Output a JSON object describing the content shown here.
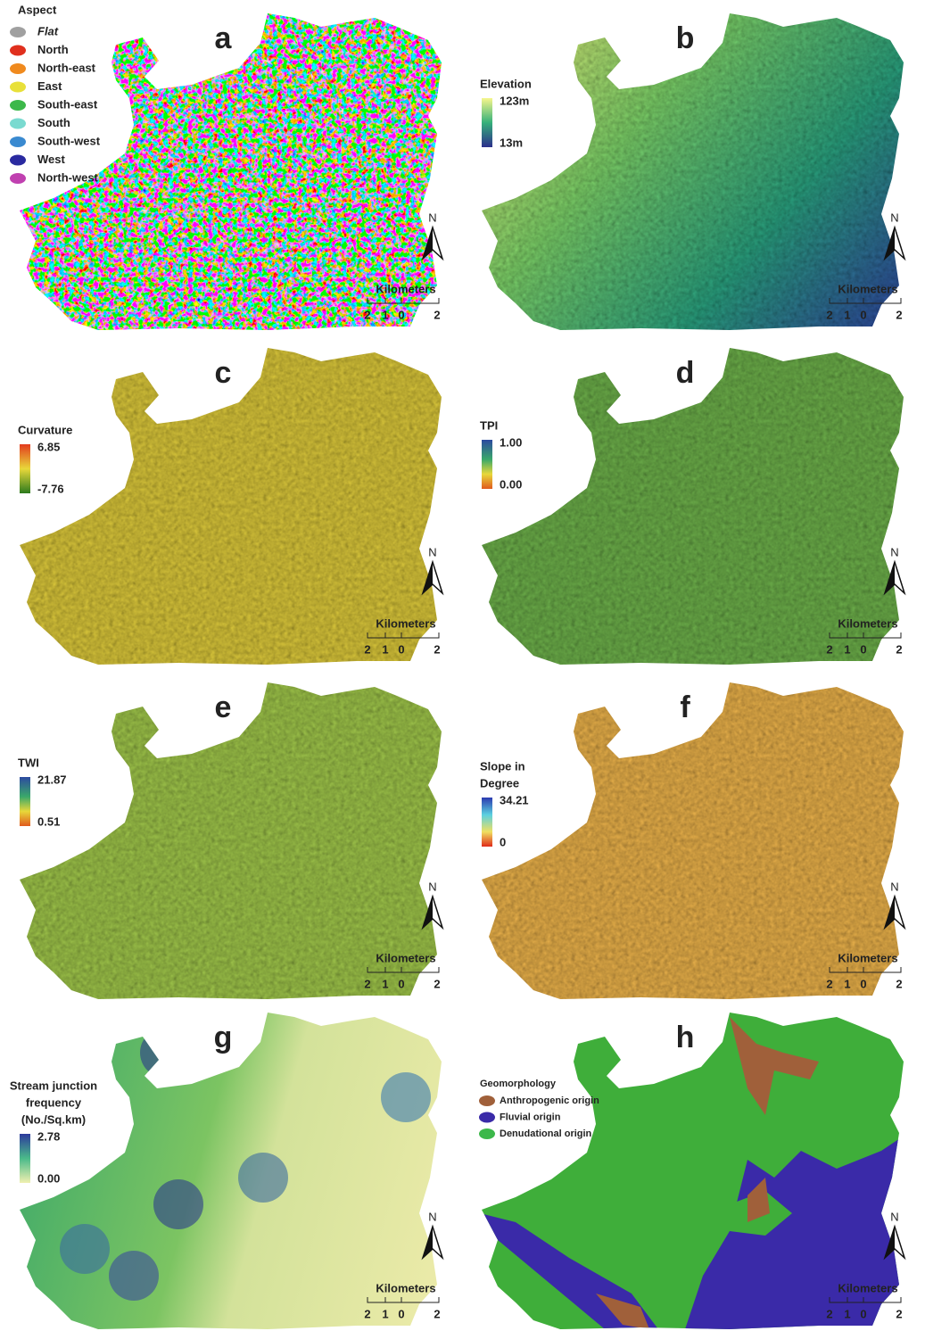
{
  "panels": [
    {
      "label": "a",
      "legend_title": [
        "Aspect"
      ],
      "legend_items": [
        "Flat",
        "North",
        "North-east",
        "East",
        "South-east",
        "South",
        "South-west",
        "West",
        "North-west"
      ]
    },
    {
      "label": "b",
      "legend_title": [
        "Elevation"
      ],
      "legend_max": "123m",
      "legend_min": "13m"
    },
    {
      "label": "c",
      "legend_title": [
        "Curvature"
      ],
      "legend_max": "6.85",
      "legend_min": "-7.76"
    },
    {
      "label": "d",
      "legend_title": [
        "TPI"
      ],
      "legend_max": "1.00",
      "legend_min": "0.00"
    },
    {
      "label": "e",
      "legend_title": [
        "TWI"
      ],
      "legend_max": "21.87",
      "legend_min": "0.51"
    },
    {
      "label": "f",
      "legend_title": [
        "Slope in",
        "Degree"
      ],
      "legend_max": "34.21",
      "legend_min": "0"
    },
    {
      "label": "g",
      "legend_title": [
        "Stream junction",
        "frequency",
        "(No./Sq.km)"
      ],
      "legend_max": "2.78",
      "legend_min": "0.00"
    },
    {
      "label": "h",
      "legend_title": [
        "Geomorphology"
      ],
      "legend_items": [
        "Anthropogenic origin",
        "Fluvial origin",
        "Denudational origin"
      ]
    }
  ],
  "north": "N",
  "scale_title": "Kilometers",
  "scale_ticks": [
    "2",
    "1",
    "0",
    "2"
  ]
}
